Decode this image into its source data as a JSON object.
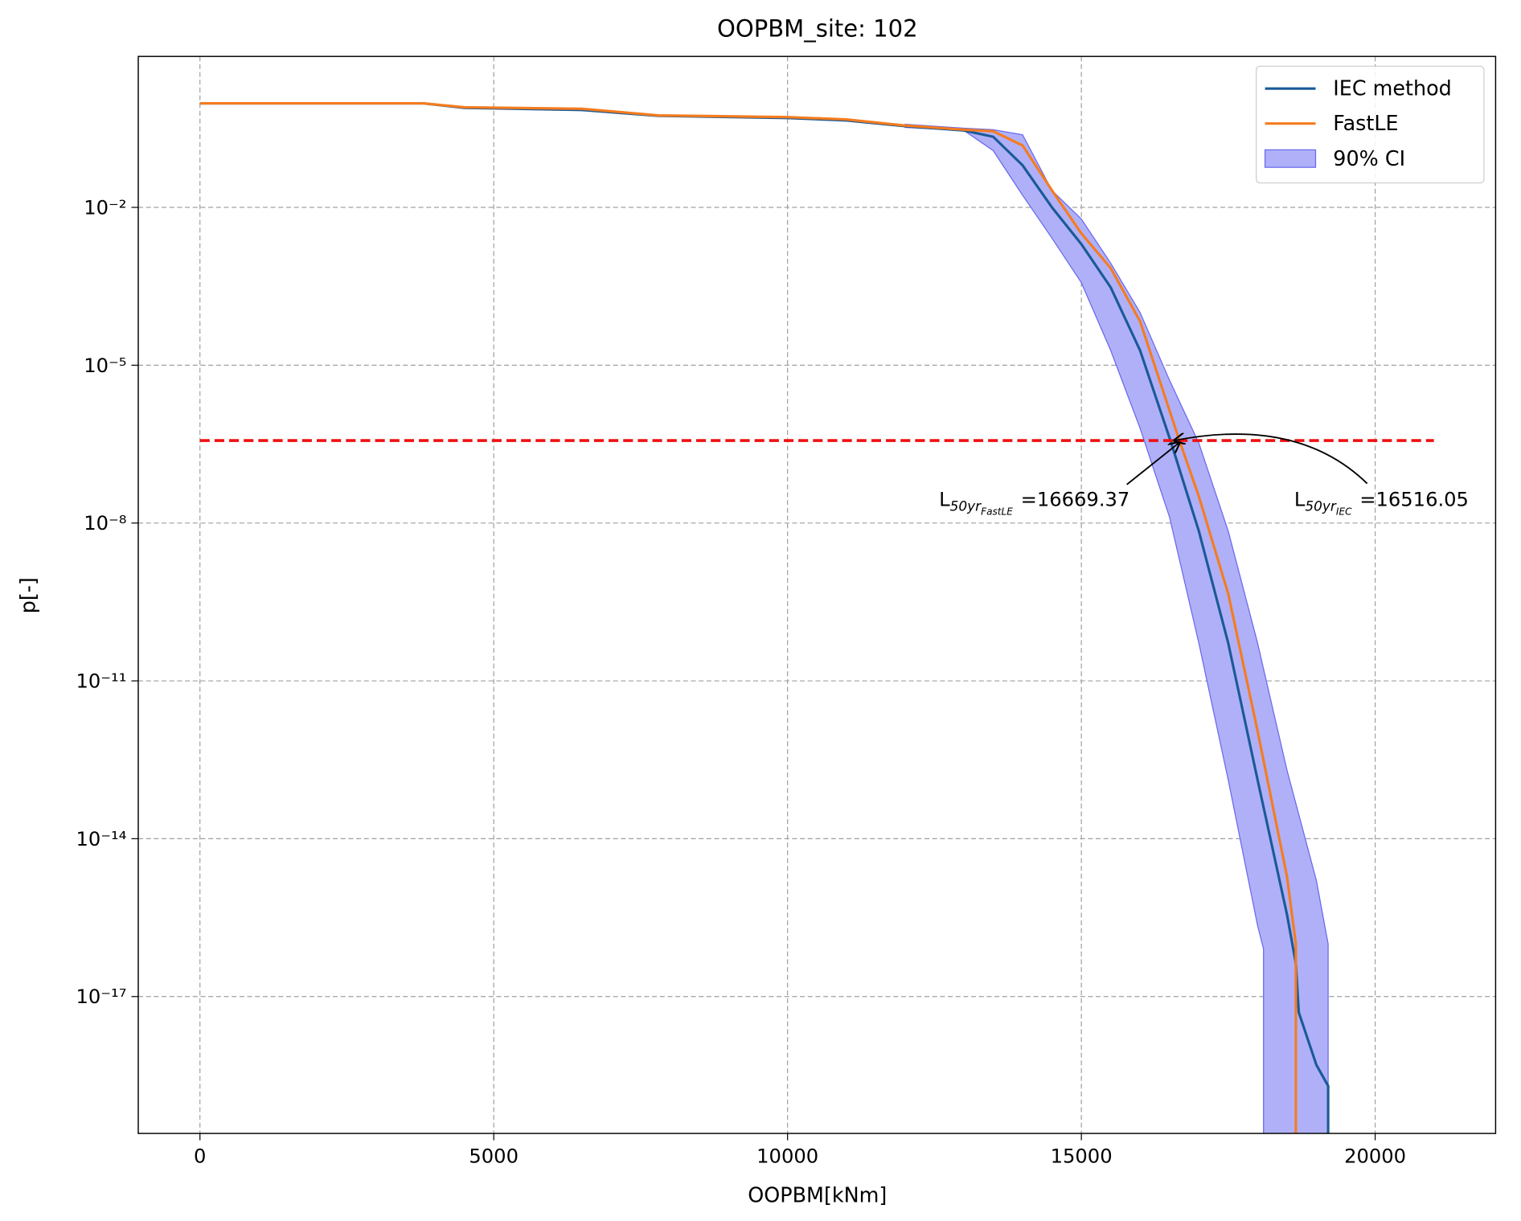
{
  "chart_data": {
    "type": "line",
    "title": "OOPBM_site: 102",
    "xlabel": "OOPBM[kNm]",
    "ylabel": "p[-]",
    "yscale": "log",
    "grid": true,
    "legend_loc": "upper right",
    "xlim": [
      -1050,
      22050
    ],
    "ylim": [
      2.5e-20,
      7.4
    ],
    "xticks": [
      0,
      5000,
      10000,
      15000,
      20000
    ],
    "yticks": [
      {
        "value": 0.01,
        "label": "10⁻²"
      },
      {
        "value": 1e-05,
        "label": "10⁻⁵"
      },
      {
        "value": 1e-08,
        "label": "10⁻⁸"
      },
      {
        "value": 1e-11,
        "label": "10⁻¹¹"
      },
      {
        "value": 1e-14,
        "label": "10⁻¹⁴"
      },
      {
        "value": 1e-17,
        "label": "10⁻¹⁷"
      }
    ],
    "series": [
      {
        "name": "IEC method",
        "color": "#1a5a96",
        "x": [
          0,
          3800,
          4500,
          6500,
          7800,
          10000,
          11000,
          12000,
          13000,
          13500,
          14000,
          14500,
          15000,
          15500,
          16000,
          16516.05,
          17000,
          17500,
          18000,
          18500,
          18650,
          18700,
          19000,
          19200,
          19200
        ],
        "values": [
          0.95,
          0.95,
          0.78,
          0.71,
          0.55,
          0.5,
          0.45,
          0.35,
          0.29,
          0.22,
          0.063,
          0.01,
          0.002,
          0.0003,
          1.9e-05,
          3.7e-07,
          7e-09,
          5.2e-11,
          1.3e-13,
          3.6e-16,
          4.3e-17,
          5e-18,
          5e-19,
          2e-19,
          1e-20
        ]
      },
      {
        "name": "FastLE",
        "color": "#f57c1f",
        "x": [
          0,
          3800,
          4500,
          6500,
          7800,
          10000,
          11000,
          12000,
          13000,
          13500,
          14000,
          14500,
          15000,
          15500,
          16000,
          16669.37,
          17000,
          17500,
          18000,
          18500,
          18650,
          18650
        ],
        "values": [
          0.95,
          0.95,
          0.8,
          0.75,
          0.56,
          0.52,
          0.47,
          0.36,
          0.3,
          0.28,
          0.15,
          0.021,
          0.0032,
          0.0007,
          6.8e-05,
          3.7e-07,
          3.2e-08,
          4.5e-10,
          1.1e-12,
          1.9e-15,
          1e-16,
          1e-20
        ]
      }
    ],
    "ci": {
      "name": "90% CI",
      "color": "#b0b0f8",
      "edgecolor": "#6666ee",
      "x": [
        12000,
        13000,
        13500,
        14000,
        14500,
        15000,
        15500,
        16000,
        16500,
        17000,
        17500,
        18000,
        18100,
        18100,
        18500,
        19000,
        19200,
        19200
      ],
      "lower": [
        0.33,
        0.29,
        0.12,
        0.017,
        0.0026,
        0.00037,
        1.9e-05,
        6.3e-07,
        1.3e-08,
        5.2e-11,
        1.3e-13,
        2.2e-16,
        8e-17,
        1e-20,
        1e-20,
        1e-20,
        1e-20,
        1e-20
      ],
      "upper": [
        0.38,
        0.32,
        0.3,
        0.24,
        0.021,
        0.006,
        0.00087,
        0.0001,
        5.2e-06,
        3.3e-07,
        7e-09,
        5.2e-11,
        1.7e-11,
        1.7e-11,
        2e-13,
        1.6e-15,
        1e-16,
        1e-20
      ]
    },
    "hline": {
      "y": 3.7e-07,
      "x": [
        0,
        21000
      ],
      "color": "#ee1111"
    },
    "annotations": [
      {
        "main": "L",
        "sub": "50yr",
        "subsub": "FastLE",
        "text": "=16669.37",
        "x": 16669.37,
        "y": 3.7e-07
      },
      {
        "main": "L",
        "sub": "50yr",
        "subsub": "IEC",
        "text": "=16516.05",
        "x": 16516.05,
        "y": 3.7e-07
      }
    ]
  }
}
